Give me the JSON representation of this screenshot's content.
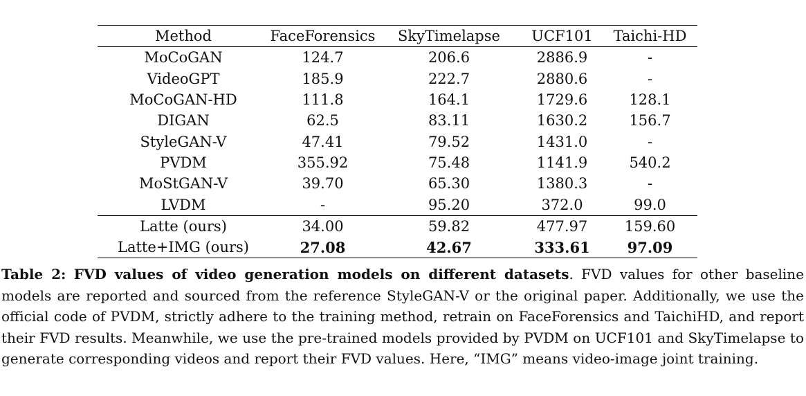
{
  "table": {
    "headers": [
      "Method",
      "FaceForensics",
      "SkyTimelapse",
      "UCF101",
      "Taichi-HD"
    ],
    "rows": [
      [
        "MoCoGAN",
        "124.7",
        "206.6",
        "2886.9",
        "-"
      ],
      [
        "VideoGPT",
        "185.9",
        "222.7",
        "2880.6",
        "-"
      ],
      [
        "MoCoGAN-HD",
        "111.8",
        "164.1",
        "1729.6",
        "128.1"
      ],
      [
        "DIGAN",
        "62.5",
        "83.11",
        "1630.2",
        "156.7"
      ],
      [
        "StyleGAN-V",
        "47.41",
        "79.52",
        "1431.0",
        "-"
      ],
      [
        "PVDM",
        "355.92",
        "75.48",
        "1141.9",
        "540.2"
      ],
      [
        "MoStGAN-V",
        "39.70",
        "65.30",
        "1380.3",
        "-"
      ],
      [
        "LVDM",
        "-",
        "95.20",
        "372.0",
        "99.0"
      ]
    ],
    "ours_rows": [
      [
        "Latte (ours)",
        "34.00",
        "59.82",
        "477.97",
        "159.60"
      ],
      [
        "Latte+IMG (ours)",
        "27.08",
        "42.67",
        "333.61",
        "97.09"
      ]
    ]
  },
  "caption": {
    "label": "Table 2:",
    "title": "FVD values of video generation models on different datasets",
    "body": ". FVD values for other baseline models are reported and sourced from the reference StyleGAN-V or the original paper. Additionally, we use the official code of PVDM, strictly adhere to the training method, retrain on FaceForensics and TaichiHD, and report their FVD results. Meanwhile, we use the pre-trained models provided by PVDM on UCF101 and SkyTimelapse to generate corresponding videos and report their FVD values. Here, “IMG” means video-image joint training."
  }
}
